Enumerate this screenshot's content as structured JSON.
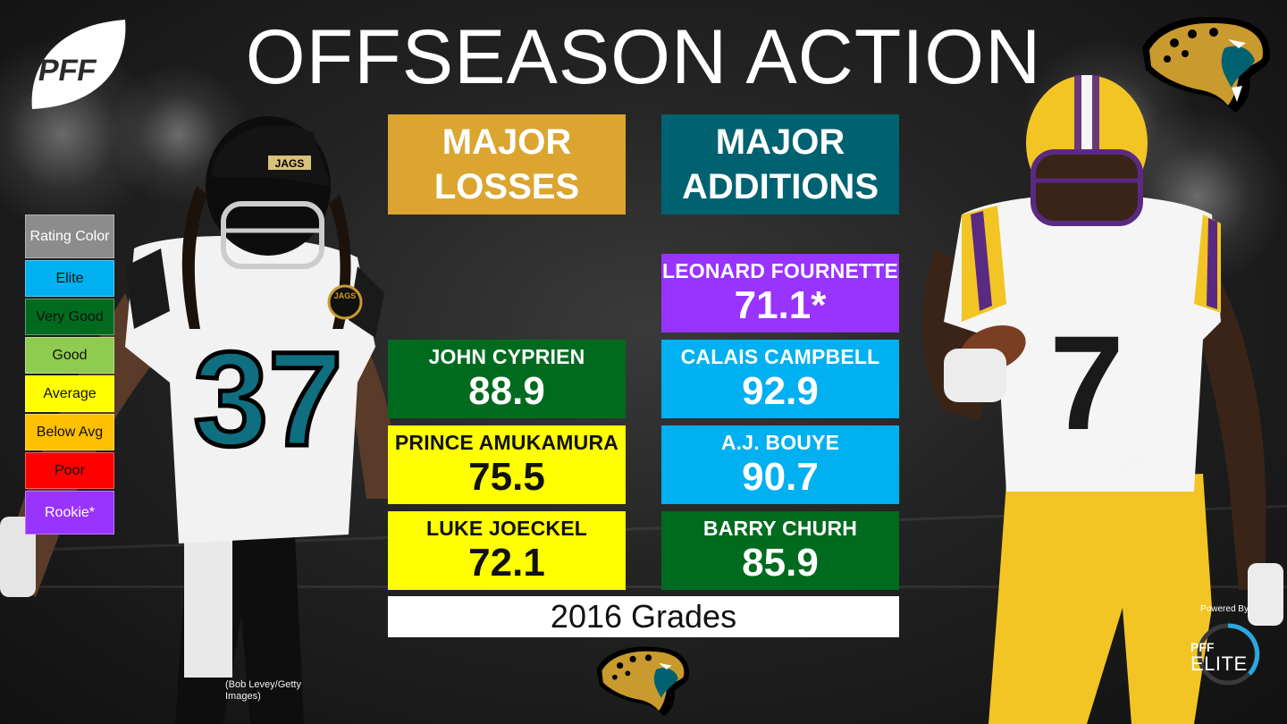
{
  "title": "OFFSEASON ACTION",
  "logos": {
    "pff": "PFF",
    "powered_by": "Powered By",
    "powered_pff": "PFF",
    "powered_elite": "ELITE"
  },
  "legend": {
    "items": [
      {
        "label": "Rating Color",
        "color": "#8c8c8c"
      },
      {
        "label": "Elite",
        "color": "#00b0f0"
      },
      {
        "label": "Very Good",
        "color": "#006b1f"
      },
      {
        "label": "Good",
        "color": "#8fcb4f"
      },
      {
        "label": "Average",
        "color": "#ffff00"
      },
      {
        "label": "Below Avg",
        "color": "#ffc000"
      },
      {
        "label": "Poor",
        "color": "#ff0000"
      },
      {
        "label": "Rookie*",
        "color": "#9933ff"
      }
    ]
  },
  "losses": {
    "header_line1": "MAJOR",
    "header_line2": "LOSSES",
    "header_color": "#dba530",
    "players": [
      {
        "name": "JOHN CYPRIEN",
        "grade": "88.9",
        "color": "#006b1f"
      },
      {
        "name": "PRINCE AMUKAMURA",
        "grade": "75.5",
        "color": "#ffff00"
      },
      {
        "name": "LUKE JOECKEL",
        "grade": "72.1",
        "color": "#ffff00"
      }
    ]
  },
  "additions": {
    "header_line1": "MAJOR",
    "header_line2": "ADDITIONS",
    "header_color": "#006271",
    "players": [
      {
        "name": "LEONARD FOURNETTE",
        "grade": "71.1*",
        "color": "#9933ff"
      },
      {
        "name": "CALAIS CAMPBELL",
        "grade": "92.9",
        "color": "#00b0f0"
      },
      {
        "name": "A.J. BOUYE",
        "grade": "90.7",
        "color": "#00b0f0"
      },
      {
        "name": "BARRY CHURH",
        "grade": "85.9",
        "color": "#006b1f"
      }
    ]
  },
  "footer": "2016 Grades",
  "photo_left": {
    "jersey_number": "37",
    "helmet_text": "JAGS",
    "patch_text": "JAGS",
    "credit": "(Bob Levey/Getty\nImages)"
  },
  "photo_right": {
    "jersey_number": "7",
    "credit": "(Chris\nGraythen/G\netty Images)"
  }
}
